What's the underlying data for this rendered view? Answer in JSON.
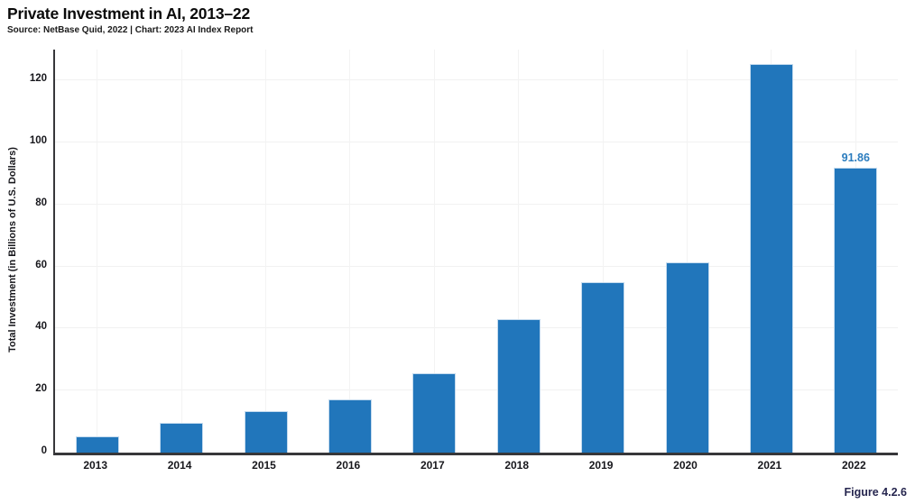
{
  "header": {
    "title": "Private Investment in AI, 2013–22",
    "source": "Source: NetBase Quid, 2022 | Chart: 2023 AI Index Report"
  },
  "footer": {
    "figure_label": "Figure 4.2.6"
  },
  "colors": {
    "bar_fill": "#2176BB",
    "bar_edge": "#C3DAEE",
    "value_label": "#2B7CBE",
    "grid_line": "#F2F2F2",
    "axis_line": "#37373A",
    "tick_text": "#17171C",
    "figure_label": "#26264F"
  },
  "chart_data": {
    "type": "bar",
    "title": "Private Investment in AI, 2013–22",
    "source": "Source: NetBase Quid, 2022 | Chart: 2023 AI Index Report",
    "xlabel": "",
    "ylabel": "Total Investment (in Billions of U.S. Dollars)",
    "categories": [
      "2013",
      "2014",
      "2015",
      "2016",
      "2017",
      "2018",
      "2019",
      "2020",
      "2021",
      "2022"
    ],
    "values": [
      5.3,
      9.7,
      13.4,
      17.2,
      25.5,
      43.1,
      55.0,
      61.5,
      125.4,
      91.86
    ],
    "bar_labels": [
      "",
      "",
      "",
      "",
      "",
      "",
      "",
      "",
      "",
      "91.86"
    ],
    "yticks": [
      0,
      20,
      40,
      60,
      80,
      100,
      120
    ],
    "ylim": [
      0,
      130
    ],
    "grid": true,
    "legend_position": "none",
    "figure_label": "Figure 4.2.6"
  }
}
